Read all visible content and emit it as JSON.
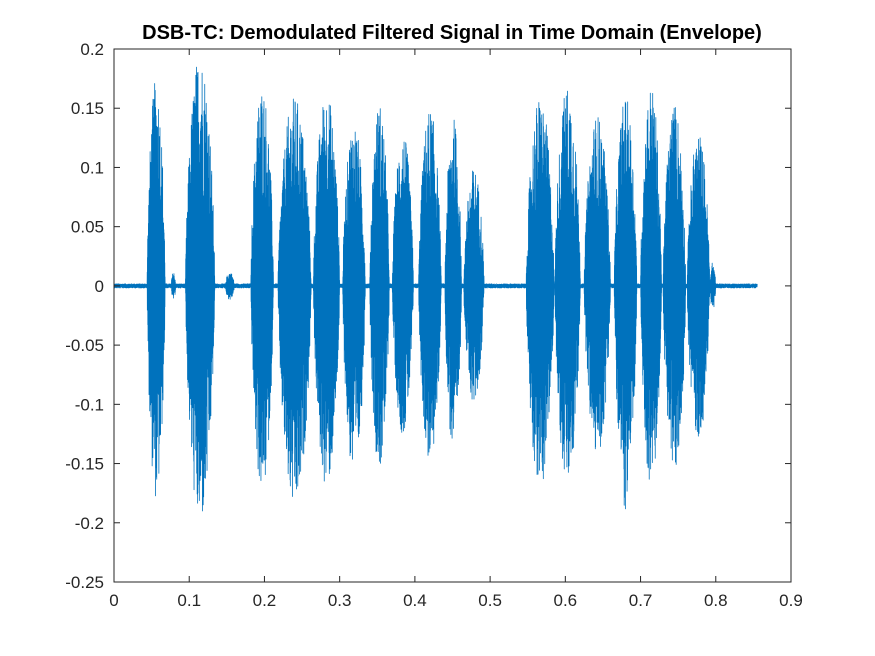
{
  "chart_data": {
    "type": "line",
    "title": "DSB-TC: Demodulated Filtered Signal in Time Domain (Envelope)",
    "xlabel": "",
    "ylabel": "",
    "xlim": [
      0,
      0.9
    ],
    "ylim": [
      -0.25,
      0.2
    ],
    "x_ticks": [
      "0",
      "0.1",
      "0.2",
      "0.3",
      "0.4",
      "0.5",
      "0.6",
      "0.7",
      "0.8",
      "0.9"
    ],
    "y_ticks": [
      "-0.25",
      "-0.2",
      "-0.15",
      "-0.1",
      "-0.05",
      "0",
      "0.05",
      "0.1",
      "0.15",
      "0.2"
    ],
    "grid": false,
    "box": true,
    "line_color": "#0072BD",
    "series": [
      {
        "x_start": 0,
        "x_end": 0.855,
        "bursts": [
          {
            "x": [
              0.044,
              0.068
            ],
            "max": 0.175,
            "min": -0.18
          },
          {
            "x": [
              0.076,
              0.082
            ],
            "max": 0.012,
            "min": -0.012
          },
          {
            "x": [
              0.095,
              0.134
            ],
            "max": 0.197,
            "min": -0.202
          },
          {
            "x": [
              0.148,
              0.16
            ],
            "max": 0.012,
            "min": -0.012
          },
          {
            "x": [
              0.182,
              0.212
            ],
            "max": 0.17,
            "min": -0.175
          },
          {
            "x": [
              0.218,
              0.262
            ],
            "max": 0.16,
            "min": -0.19
          },
          {
            "x": [
              0.265,
              0.3
            ],
            "max": 0.165,
            "min": -0.17
          },
          {
            "x": [
              0.304,
              0.334
            ],
            "max": 0.14,
            "min": -0.162
          },
          {
            "x": [
              0.34,
              0.366
            ],
            "max": 0.155,
            "min": -0.155
          },
          {
            "x": [
              0.37,
              0.398
            ],
            "max": 0.13,
            "min": -0.125
          },
          {
            "x": [
              0.405,
              0.435
            ],
            "max": 0.15,
            "min": -0.15
          },
          {
            "x": [
              0.44,
              0.462
            ],
            "max": 0.143,
            "min": -0.14
          },
          {
            "x": [
              0.465,
              0.492
            ],
            "max": 0.1,
            "min": -0.1
          },
          {
            "x": [
              0.548,
              0.585
            ],
            "max": 0.16,
            "min": -0.17
          },
          {
            "x": [
              0.586,
              0.62
            ],
            "max": 0.17,
            "min": -0.17
          },
          {
            "x": [
              0.625,
              0.66
            ],
            "max": 0.145,
            "min": -0.145
          },
          {
            "x": [
              0.665,
              0.695
            ],
            "max": 0.16,
            "min": -0.19
          },
          {
            "x": [
              0.7,
              0.728
            ],
            "max": 0.17,
            "min": -0.17
          },
          {
            "x": [
              0.73,
              0.76
            ],
            "max": 0.155,
            "min": -0.16
          },
          {
            "x": [
              0.762,
              0.792
            ],
            "max": 0.13,
            "min": -0.13
          },
          {
            "x": [
              0.792,
              0.8
            ],
            "max": 0.02,
            "min": -0.02
          }
        ]
      }
    ]
  }
}
